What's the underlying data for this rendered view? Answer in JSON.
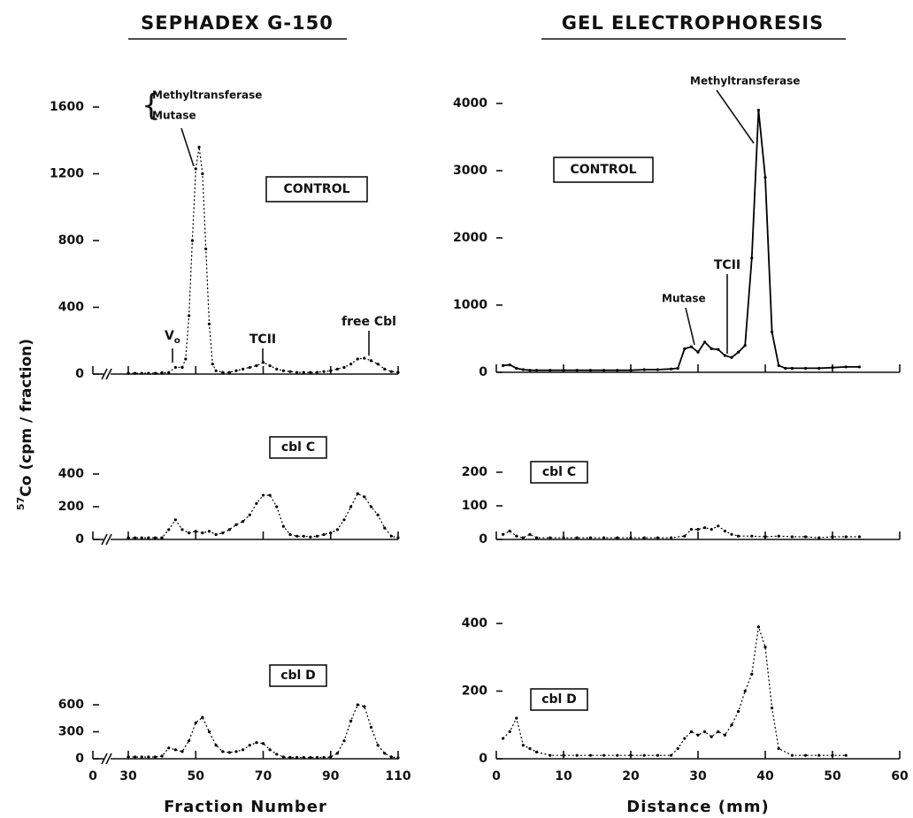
{
  "y_label_sup": "57",
  "y_label": "Co (cpm / fraction)",
  "chart_data": [
    {
      "type": "line",
      "title": "SEPHADEX G-150",
      "label": "CONTROL",
      "annotations": [
        "Methyltransferase",
        "Mutase",
        "V",
        "o",
        "TCII",
        "free Cbl"
      ],
      "line_style": "dotted",
      "color": "#000000",
      "axis_break": true,
      "xlim": [
        30,
        110
      ],
      "ylim": [
        0,
        1600
      ],
      "yticks": [
        0,
        400,
        800,
        1200,
        1600
      ],
      "x": [
        30,
        32,
        34,
        36,
        38,
        40,
        42,
        44,
        46,
        47,
        48,
        49,
        50,
        51,
        52,
        53,
        54,
        55,
        56,
        58,
        60,
        62,
        64,
        66,
        68,
        70,
        72,
        74,
        76,
        78,
        80,
        82,
        84,
        86,
        88,
        90,
        92,
        94,
        96,
        98,
        100,
        102,
        104,
        106,
        108,
        110
      ],
      "values": [
        5,
        5,
        5,
        5,
        5,
        8,
        10,
        40,
        40,
        90,
        350,
        800,
        1230,
        1360,
        1200,
        750,
        300,
        60,
        20,
        10,
        10,
        20,
        30,
        40,
        50,
        70,
        50,
        30,
        20,
        15,
        10,
        10,
        10,
        10,
        15,
        20,
        30,
        40,
        60,
        90,
        95,
        80,
        60,
        30,
        15,
        10
      ]
    },
    {
      "type": "line",
      "label": "cbl C",
      "line_style": "dotted",
      "color": "#000000",
      "axis_break": true,
      "xlim": [
        30,
        110
      ],
      "ylim": [
        0,
        400
      ],
      "yticks": [
        0,
        200,
        400
      ],
      "x": [
        30,
        32,
        34,
        36,
        38,
        40,
        42,
        44,
        46,
        48,
        50,
        52,
        54,
        56,
        58,
        60,
        62,
        64,
        66,
        68,
        70,
        72,
        74,
        76,
        78,
        80,
        82,
        84,
        86,
        88,
        90,
        92,
        94,
        96,
        98,
        100,
        102,
        104,
        106,
        108,
        110
      ],
      "values": [
        10,
        10,
        10,
        10,
        10,
        10,
        60,
        120,
        60,
        40,
        50,
        40,
        50,
        30,
        40,
        60,
        90,
        110,
        150,
        220,
        270,
        270,
        200,
        80,
        30,
        20,
        20,
        15,
        20,
        30,
        40,
        60,
        120,
        200,
        280,
        260,
        200,
        150,
        70,
        20,
        10
      ]
    },
    {
      "type": "line",
      "label": "cbl D",
      "x_label": "Fraction Number",
      "line_style": "dotted",
      "color": "#000000",
      "axis_break": true,
      "xlim": [
        30,
        110
      ],
      "xticks": [
        0,
        30,
        50,
        70,
        90,
        110
      ],
      "ylim": [
        0,
        600
      ],
      "yticks": [
        0,
        300,
        600
      ],
      "x": [
        30,
        32,
        34,
        36,
        38,
        40,
        42,
        44,
        46,
        48,
        50,
        52,
        54,
        56,
        58,
        60,
        62,
        64,
        66,
        68,
        70,
        72,
        74,
        76,
        78,
        80,
        82,
        84,
        86,
        88,
        90,
        92,
        94,
        96,
        98,
        100,
        102,
        104,
        106,
        108,
        110
      ],
      "values": [
        20,
        20,
        20,
        20,
        20,
        30,
        120,
        100,
        80,
        200,
        400,
        460,
        300,
        150,
        80,
        70,
        80,
        100,
        150,
        180,
        170,
        100,
        50,
        20,
        15,
        15,
        15,
        15,
        15,
        15,
        20,
        60,
        200,
        420,
        600,
        580,
        350,
        150,
        60,
        20,
        10
      ]
    },
    {
      "type": "line",
      "title": "GEL ELECTROPHORESIS",
      "label": "CONTROL",
      "annotations": [
        "Methyltransferase",
        "Mutase",
        "TCII"
      ],
      "line_style": "solid",
      "color": "#000000",
      "xlim": [
        0,
        60
      ],
      "ylim": [
        0,
        4000
      ],
      "yticks": [
        0,
        1000,
        2000,
        3000,
        4000
      ],
      "x": [
        1,
        2,
        3,
        4,
        5,
        6,
        8,
        10,
        12,
        14,
        16,
        18,
        20,
        22,
        24,
        26,
        27,
        28,
        29,
        30,
        31,
        32,
        33,
        34,
        35,
        36,
        37,
        38,
        39,
        40,
        41,
        42,
        43,
        44,
        46,
        48,
        50,
        52,
        54
      ],
      "values": [
        100,
        110,
        60,
        40,
        30,
        30,
        30,
        30,
        30,
        30,
        30,
        30,
        30,
        40,
        40,
        50,
        60,
        350,
        380,
        300,
        450,
        350,
        340,
        250,
        220,
        300,
        400,
        1700,
        3900,
        2900,
        600,
        100,
        60,
        60,
        60,
        60,
        70,
        80,
        80
      ]
    },
    {
      "type": "line",
      "label": "cbl C",
      "line_style": "dotted",
      "color": "#000000",
      "xlim": [
        0,
        60
      ],
      "ylim": [
        0,
        200
      ],
      "yticks": [
        0,
        100,
        200
      ],
      "x": [
        1,
        2,
        3,
        4,
        5,
        6,
        8,
        10,
        12,
        14,
        16,
        18,
        20,
        22,
        24,
        26,
        28,
        29,
        30,
        31,
        32,
        33,
        34,
        35,
        36,
        38,
        40,
        42,
        44,
        46,
        48,
        50,
        52,
        54
      ],
      "values": [
        15,
        25,
        10,
        5,
        15,
        5,
        5,
        5,
        5,
        5,
        5,
        5,
        5,
        5,
        5,
        5,
        10,
        30,
        30,
        35,
        30,
        40,
        25,
        15,
        10,
        10,
        8,
        10,
        8,
        8,
        5,
        8,
        8,
        8
      ]
    },
    {
      "type": "line",
      "label": "cbl D",
      "x_label": "Distance (mm)",
      "line_style": "dotted",
      "color": "#000000",
      "xlim": [
        0,
        60
      ],
      "xticks": [
        0,
        10,
        20,
        30,
        40,
        50,
        60
      ],
      "ylim": [
        0,
        400
      ],
      "yticks": [
        0,
        200,
        400
      ],
      "x": [
        1,
        2,
        3,
        4,
        5,
        6,
        8,
        10,
        12,
        14,
        16,
        18,
        20,
        22,
        24,
        26,
        27,
        28,
        29,
        30,
        31,
        32,
        33,
        34,
        35,
        36,
        37,
        38,
        39,
        40,
        41,
        42,
        44,
        46,
        48,
        50,
        52
      ],
      "values": [
        60,
        80,
        120,
        40,
        30,
        20,
        10,
        10,
        10,
        10,
        10,
        10,
        10,
        10,
        10,
        10,
        30,
        60,
        80,
        70,
        80,
        65,
        80,
        70,
        100,
        140,
        200,
        250,
        390,
        330,
        150,
        30,
        10,
        10,
        10,
        10,
        10
      ]
    }
  ]
}
